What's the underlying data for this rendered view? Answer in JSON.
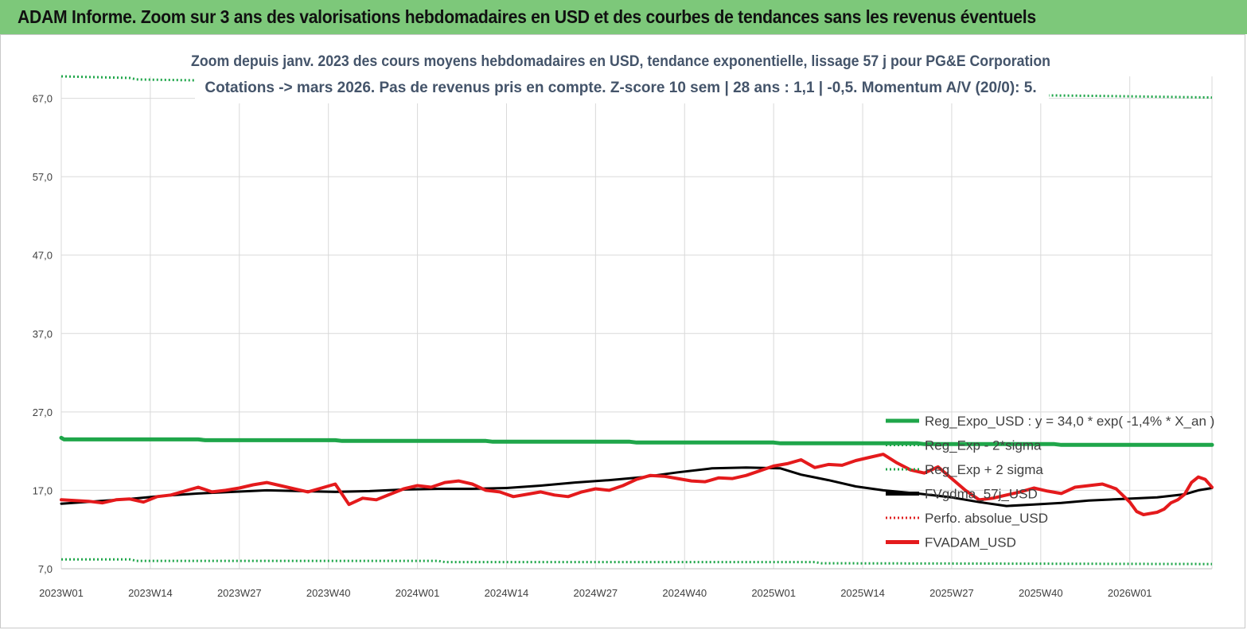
{
  "header": {
    "title": "ADAM Informe. Zoom sur 3 ans des valorisations hebdomadaires en USD et des courbes de tendances sans les revenus éventuels",
    "bg_color": "#7dc87a"
  },
  "chart_data": {
    "type": "line",
    "title_line1": "Zoom depuis janv. 2023 des cours moyens hebdomadaires en USD, tendance exponentielle, lissage 57 j pour PG&E Corporation",
    "title_line2": "Cotations -> mars 2026. Pas de revenus pris en compte. Z-score 10 sem | 28 ans : 1,1 | -0,5. Momentum A/V (20/0): 5.",
    "x_tick_labels": [
      "2023W01",
      "2023W14",
      "2023W27",
      "2023W40",
      "2024W01",
      "2024W14",
      "2024W27",
      "2024W40",
      "2025W01",
      "2025W14",
      "2025W27",
      "2025W40",
      "2026W01"
    ],
    "y_tick_labels": [
      "7,0",
      "17,0",
      "27,0",
      "37,0",
      "47,0",
      "57,0",
      "67,0"
    ],
    "ylim": [
      7,
      68
    ],
    "grid": true,
    "legend_position": "bottom-right",
    "n_weeks": 169,
    "series": [
      {
        "name": "Reg_Expo_USD : y = 34,0 * exp( -1,4% *  X_an )",
        "color": "#1fa64a",
        "style": "solid",
        "width": 5,
        "points": [
          [
            0,
            23.7
          ],
          [
            0.4,
            23.5
          ],
          [
            20,
            23.5
          ],
          [
            21,
            23.4
          ],
          [
            40,
            23.4
          ],
          [
            41,
            23.3
          ],
          [
            62,
            23.3
          ],
          [
            63,
            23.2
          ],
          [
            83,
            23.2
          ],
          [
            84,
            23.1
          ],
          [
            104,
            23.1
          ],
          [
            105,
            23.0
          ],
          [
            125,
            23.0
          ],
          [
            126,
            22.9
          ],
          [
            145,
            22.9
          ],
          [
            146,
            22.8
          ],
          [
            168,
            22.8
          ]
        ]
      },
      {
        "name": "Reg_Exp - 2*sigma",
        "color": "#1fa64a",
        "style": "dotted",
        "width": 3,
        "points": [
          [
            0,
            8.2
          ],
          [
            10,
            8.2
          ],
          [
            11,
            8.0
          ],
          [
            55,
            8.0
          ],
          [
            56,
            7.85
          ],
          [
            110,
            7.85
          ],
          [
            111,
            7.7
          ],
          [
            168,
            7.6
          ]
        ]
      },
      {
        "name": "Reg_Exp + 2 sigma",
        "color": "#1fa64a",
        "style": "dotted",
        "width": 3,
        "points": [
          [
            0,
            69.8
          ],
          [
            10,
            69.6
          ],
          [
            11,
            69.4
          ],
          [
            19,
            69.3
          ],
          [
            141,
            67.4
          ],
          [
            152,
            67.3
          ],
          [
            168,
            67.1
          ]
        ]
      },
      {
        "name": "FVgdma_57j_USD",
        "color": "#000000",
        "style": "solid",
        "width": 3,
        "points": [
          [
            0,
            15.3
          ],
          [
            5,
            15.6
          ],
          [
            10,
            15.9
          ],
          [
            15,
            16.3
          ],
          [
            20,
            16.6
          ],
          [
            25,
            16.8
          ],
          [
            30,
            17.0
          ],
          [
            35,
            16.9
          ],
          [
            40,
            16.8
          ],
          [
            45,
            16.9
          ],
          [
            50,
            17.1
          ],
          [
            55,
            17.2
          ],
          [
            60,
            17.2
          ],
          [
            65,
            17.3
          ],
          [
            70,
            17.6
          ],
          [
            75,
            18.0
          ],
          [
            80,
            18.3
          ],
          [
            85,
            18.7
          ],
          [
            90,
            19.3
          ],
          [
            95,
            19.8
          ],
          [
            100,
            19.9
          ],
          [
            105,
            19.8
          ],
          [
            108,
            19.0
          ],
          [
            112,
            18.3
          ],
          [
            116,
            17.5
          ],
          [
            120,
            17.0
          ],
          [
            125,
            16.6
          ],
          [
            130,
            16.1
          ],
          [
            134,
            15.5
          ],
          [
            138,
            15.0
          ],
          [
            142,
            15.2
          ],
          [
            146,
            15.4
          ],
          [
            150,
            15.7
          ],
          [
            155,
            15.9
          ],
          [
            160,
            16.1
          ],
          [
            164,
            16.5
          ],
          [
            166,
            17.0
          ],
          [
            168,
            17.3
          ]
        ]
      },
      {
        "name": "Perfo. absolue_USD",
        "color": "#e02020",
        "style": "dotted",
        "width": 3,
        "points": []
      },
      {
        "name": "FVADAM_USD",
        "color": "#e41a1c",
        "style": "solid",
        "width": 4,
        "points": [
          [
            0,
            15.8
          ],
          [
            2,
            15.7
          ],
          [
            4,
            15.6
          ],
          [
            6,
            15.4
          ],
          [
            8,
            15.8
          ],
          [
            10,
            15.9
          ],
          [
            12,
            15.5
          ],
          [
            14,
            16.2
          ],
          [
            16,
            16.4
          ],
          [
            18,
            16.9
          ],
          [
            20,
            17.4
          ],
          [
            22,
            16.8
          ],
          [
            24,
            17.0
          ],
          [
            26,
            17.3
          ],
          [
            28,
            17.7
          ],
          [
            30,
            18.0
          ],
          [
            32,
            17.6
          ],
          [
            34,
            17.2
          ],
          [
            36,
            16.8
          ],
          [
            38,
            17.3
          ],
          [
            40,
            17.8
          ],
          [
            42,
            15.2
          ],
          [
            44,
            16.0
          ],
          [
            46,
            15.8
          ],
          [
            48,
            16.5
          ],
          [
            50,
            17.2
          ],
          [
            52,
            17.6
          ],
          [
            54,
            17.4
          ],
          [
            56,
            18.0
          ],
          [
            58,
            18.2
          ],
          [
            60,
            17.8
          ],
          [
            62,
            17.0
          ],
          [
            64,
            16.8
          ],
          [
            66,
            16.2
          ],
          [
            68,
            16.5
          ],
          [
            70,
            16.8
          ],
          [
            72,
            16.4
          ],
          [
            74,
            16.2
          ],
          [
            76,
            16.8
          ],
          [
            78,
            17.2
          ],
          [
            80,
            17.0
          ],
          [
            82,
            17.6
          ],
          [
            84,
            18.4
          ],
          [
            86,
            18.9
          ],
          [
            88,
            18.8
          ],
          [
            90,
            18.5
          ],
          [
            92,
            18.2
          ],
          [
            94,
            18.1
          ],
          [
            96,
            18.6
          ],
          [
            98,
            18.5
          ],
          [
            100,
            18.9
          ],
          [
            102,
            19.5
          ],
          [
            104,
            20.1
          ],
          [
            106,
            20.4
          ],
          [
            108,
            20.9
          ],
          [
            110,
            19.9
          ],
          [
            112,
            20.3
          ],
          [
            114,
            20.2
          ],
          [
            116,
            20.8
          ],
          [
            118,
            21.2
          ],
          [
            120,
            21.6
          ],
          [
            122,
            20.5
          ],
          [
            124,
            19.6
          ],
          [
            126,
            19.2
          ],
          [
            128,
            20.0
          ],
          [
            130,
            18.5
          ],
          [
            132,
            17.0
          ],
          [
            134,
            15.8
          ],
          [
            136,
            16.0
          ],
          [
            138,
            16.4
          ],
          [
            140,
            16.8
          ],
          [
            142,
            17.3
          ],
          [
            144,
            16.9
          ],
          [
            146,
            16.6
          ],
          [
            148,
            17.4
          ],
          [
            150,
            17.6
          ],
          [
            152,
            17.8
          ],
          [
            154,
            17.2
          ],
          [
            156,
            15.5
          ],
          [
            157,
            14.3
          ],
          [
            158,
            13.9
          ],
          [
            160,
            14.2
          ],
          [
            161,
            14.6
          ],
          [
            162,
            15.4
          ],
          [
            163,
            15.8
          ],
          [
            164,
            16.5
          ],
          [
            165,
            18.0
          ],
          [
            166,
            18.7
          ],
          [
            167,
            18.4
          ],
          [
            168,
            17.4
          ]
        ]
      }
    ]
  }
}
